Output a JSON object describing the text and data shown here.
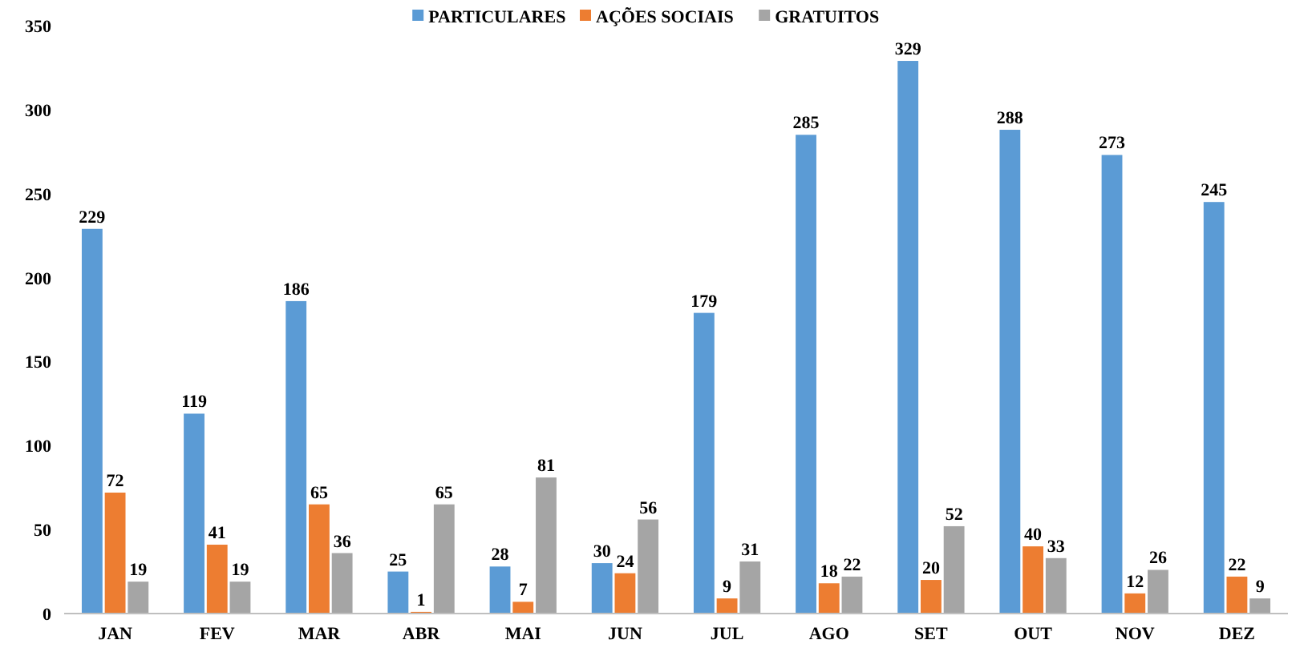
{
  "chart_data": {
    "type": "bar",
    "categories": [
      "JAN",
      "FEV",
      "MAR",
      "ABR",
      "MAI",
      "JUN",
      "JUL",
      "AGO",
      "SET",
      "OUT",
      "NOV",
      "DEZ"
    ],
    "series": [
      {
        "name": "PARTICULARES",
        "color": "#5b9bd5",
        "values": [
          229,
          119,
          186,
          25,
          28,
          30,
          179,
          285,
          329,
          288,
          273,
          245
        ]
      },
      {
        "name": "AÇÕES SOCIAIS",
        "color": "#ed7d31",
        "values": [
          72,
          41,
          65,
          1,
          7,
          24,
          9,
          18,
          20,
          40,
          12,
          22
        ]
      },
      {
        "name": "GRATUITOS",
        "color": "#a5a5a5",
        "values": [
          19,
          19,
          36,
          65,
          81,
          56,
          31,
          22,
          52,
          33,
          26,
          9
        ]
      }
    ],
    "ylim": [
      0,
      350
    ],
    "yticks": [
      0,
      50,
      100,
      150,
      200,
      250,
      300,
      350
    ],
    "data_labels": true,
    "legend": "top",
    "grid": false
  }
}
